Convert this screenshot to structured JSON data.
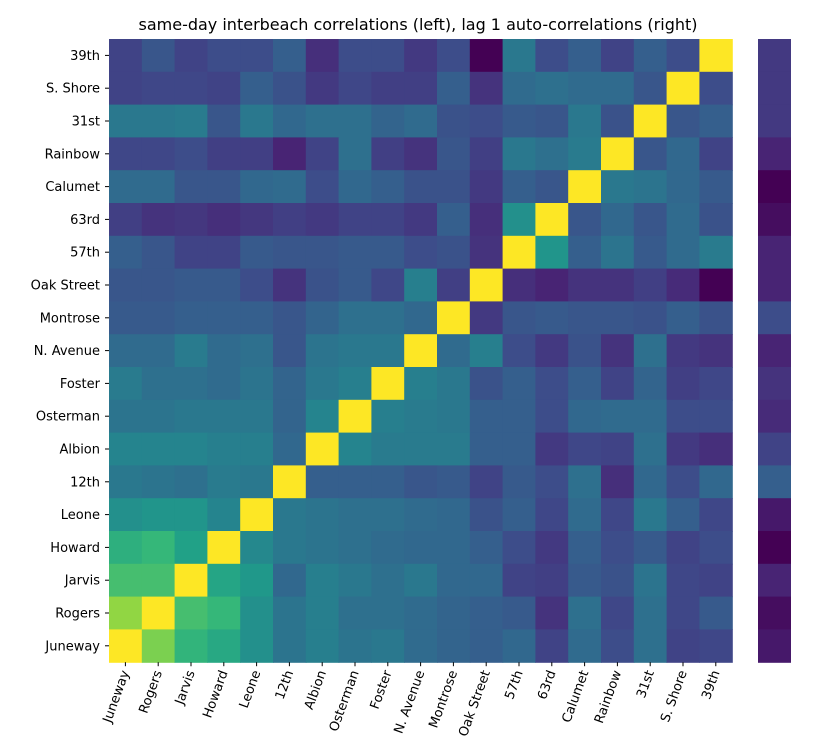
{
  "chart_data": [
    {
      "type": "heatmap",
      "title": "same-day interbeach correlations (left), lag 1 auto-correlations (right)",
      "colormap": "viridis",
      "value_range": [
        -0.5,
        1.0
      ],
      "x_categories": [
        "Juneway",
        "Rogers",
        "Jarvis",
        "Howard",
        "Leone",
        "12th",
        "Albion",
        "Osterman",
        "Foster",
        "N. Avenue",
        "Montrose",
        "Oak Street",
        "57th",
        "63rd",
        "Calumet",
        "Rainbow",
        "31st",
        "S. Shore",
        "39th"
      ],
      "y_categories": [
        "39th",
        "S. Shore",
        "31st",
        "Rainbow",
        "Calumet",
        "63rd",
        "57th",
        "Oak Street",
        "Montrose",
        "N. Avenue",
        "Foster",
        "Osterman",
        "Albion",
        "12th",
        "Leone",
        "Howard",
        "Jarvis",
        "Rogers",
        "Juneway"
      ],
      "values": [
        [
          -0.2,
          -0.1,
          -0.2,
          -0.15,
          -0.15,
          -0.05,
          -0.3,
          -0.15,
          -0.15,
          -0.25,
          -0.15,
          -0.5,
          0.1,
          -0.15,
          -0.05,
          -0.2,
          -0.05,
          -0.15,
          1.0
        ],
        [
          -0.2,
          -0.18,
          -0.18,
          -0.2,
          -0.05,
          -0.12,
          -0.25,
          -0.18,
          -0.22,
          -0.22,
          -0.05,
          -0.28,
          0.02,
          0.05,
          0.02,
          0.02,
          -0.1,
          1.0,
          -0.15
        ],
        [
          0.1,
          0.1,
          0.12,
          -0.1,
          0.1,
          0.0,
          0.05,
          0.05,
          -0.02,
          0.02,
          -0.12,
          -0.15,
          -0.08,
          -0.1,
          0.1,
          -0.12,
          1.0,
          -0.1,
          -0.05
        ],
        [
          -0.18,
          -0.18,
          -0.15,
          -0.22,
          -0.22,
          -0.35,
          -0.2,
          0.05,
          -0.22,
          -0.28,
          -0.1,
          -0.22,
          0.1,
          0.05,
          0.12,
          1.0,
          -0.1,
          0.0,
          -0.2
        ],
        [
          0.02,
          0.02,
          -0.1,
          -0.1,
          0.0,
          0.02,
          -0.15,
          0.0,
          -0.05,
          -0.12,
          -0.12,
          -0.25,
          -0.05,
          -0.1,
          1.0,
          0.1,
          0.08,
          0.0,
          -0.08
        ],
        [
          -0.22,
          -0.28,
          -0.26,
          -0.3,
          -0.26,
          -0.22,
          -0.25,
          -0.2,
          -0.2,
          -0.25,
          -0.05,
          -0.3,
          0.25,
          1.0,
          -0.1,
          0.0,
          -0.1,
          0.02,
          -0.12
        ],
        [
          -0.05,
          -0.1,
          -0.2,
          -0.2,
          -0.08,
          -0.1,
          -0.1,
          -0.08,
          -0.08,
          -0.15,
          -0.12,
          -0.28,
          1.0,
          0.28,
          -0.05,
          0.08,
          -0.08,
          0.02,
          0.12
        ],
        [
          -0.1,
          -0.1,
          -0.08,
          -0.08,
          -0.15,
          -0.28,
          -0.12,
          -0.08,
          -0.18,
          0.15,
          -0.22,
          1.0,
          -0.3,
          -0.35,
          -0.28,
          -0.28,
          -0.22,
          -0.32,
          -0.5
        ],
        [
          -0.08,
          -0.08,
          -0.05,
          -0.05,
          -0.05,
          -0.1,
          -0.02,
          0.05,
          0.05,
          0.0,
          1.0,
          -0.25,
          -0.1,
          -0.08,
          -0.1,
          -0.1,
          -0.12,
          -0.05,
          -0.12
        ],
        [
          0.02,
          0.02,
          0.12,
          0.02,
          0.05,
          -0.1,
          0.08,
          0.1,
          0.1,
          1.0,
          0.02,
          0.15,
          -0.15,
          -0.25,
          -0.12,
          -0.28,
          0.05,
          -0.25,
          -0.28
        ],
        [
          0.12,
          0.05,
          0.05,
          0.02,
          0.08,
          -0.02,
          0.1,
          0.15,
          1.0,
          0.15,
          0.1,
          -0.12,
          -0.05,
          -0.15,
          -0.05,
          -0.2,
          -0.02,
          -0.22,
          -0.18
        ],
        [
          0.08,
          0.08,
          0.1,
          0.1,
          0.1,
          -0.02,
          0.18,
          1.0,
          0.15,
          0.12,
          0.1,
          -0.05,
          -0.05,
          -0.15,
          0.0,
          0.02,
          0.02,
          -0.15,
          -0.15
        ],
        [
          0.18,
          0.18,
          0.18,
          0.15,
          0.15,
          0.0,
          1.0,
          0.18,
          0.12,
          0.12,
          0.12,
          -0.05,
          -0.05,
          -0.25,
          -0.18,
          -0.2,
          0.05,
          -0.25,
          -0.3
        ],
        [
          0.1,
          0.08,
          0.05,
          0.12,
          0.1,
          1.0,
          -0.05,
          -0.05,
          -0.05,
          -0.1,
          -0.08,
          -0.2,
          -0.08,
          -0.15,
          0.05,
          -0.3,
          0.0,
          -0.15,
          0.0
        ],
        [
          0.25,
          0.28,
          0.28,
          0.18,
          1.0,
          0.1,
          0.08,
          0.05,
          0.05,
          0.02,
          0.0,
          -0.12,
          -0.05,
          -0.18,
          0.02,
          -0.18,
          0.1,
          -0.05,
          -0.18
        ],
        [
          0.45,
          0.5,
          0.35,
          1.0,
          0.2,
          0.1,
          0.08,
          0.05,
          0.02,
          0.0,
          0.0,
          -0.05,
          -0.15,
          -0.25,
          -0.05,
          -0.15,
          -0.08,
          -0.2,
          -0.15
        ],
        [
          0.55,
          0.55,
          1.0,
          0.38,
          0.3,
          0.0,
          0.15,
          0.1,
          0.05,
          0.1,
          0.0,
          0.0,
          -0.2,
          -0.22,
          -0.08,
          -0.12,
          0.08,
          -0.18,
          -0.2
        ],
        [
          0.75,
          1.0,
          0.55,
          0.5,
          0.25,
          0.08,
          0.15,
          0.05,
          0.05,
          0.02,
          -0.02,
          -0.05,
          -0.08,
          -0.28,
          0.05,
          -0.18,
          0.05,
          -0.18,
          -0.08
        ],
        [
          1.0,
          0.7,
          0.48,
          0.4,
          0.25,
          0.08,
          0.15,
          0.08,
          0.1,
          0.02,
          -0.02,
          -0.05,
          0.0,
          -0.2,
          0.02,
          -0.15,
          0.05,
          -0.2,
          -0.18
        ]
      ]
    },
    {
      "type": "heatmap",
      "description_free": true,
      "colormap": "viridis",
      "value_range": [
        -0.5,
        1.0
      ],
      "y_categories": [
        "39th",
        "S. Shore",
        "31st",
        "Rainbow",
        "Calumet",
        "63rd",
        "57th",
        "Oak Street",
        "Montrose",
        "N. Avenue",
        "Foster",
        "Osterman",
        "Albion",
        "12th",
        "Leone",
        "Howard",
        "Jarvis",
        "Rogers",
        "Juneway"
      ],
      "values": [
        -0.25,
        -0.25,
        -0.25,
        -0.35,
        -0.5,
        -0.45,
        -0.35,
        -0.35,
        -0.15,
        -0.35,
        -0.28,
        -0.32,
        -0.2,
        -0.05,
        -0.4,
        -0.5,
        -0.35,
        -0.45,
        -0.4
      ]
    }
  ]
}
